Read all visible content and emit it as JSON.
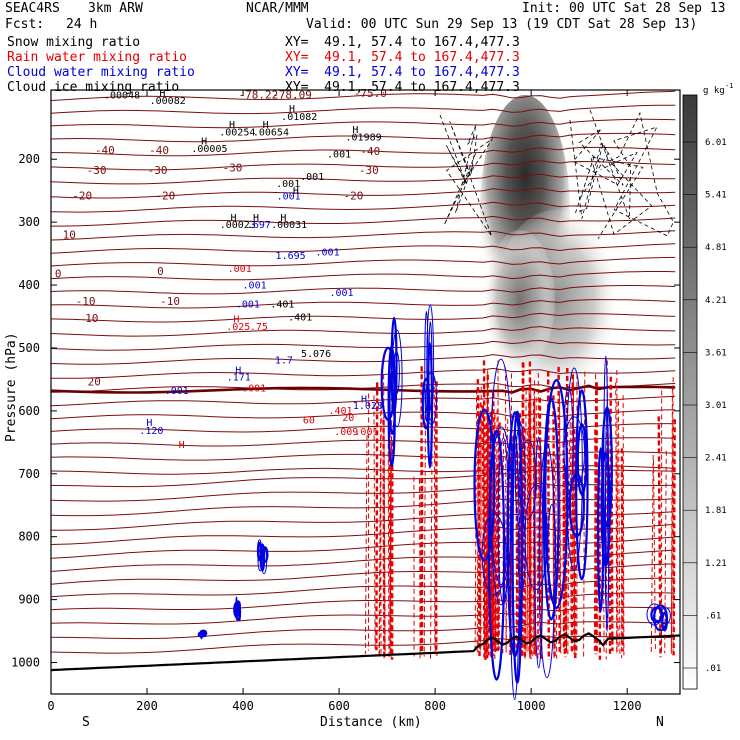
{
  "header": {
    "project": "SEAC4RS",
    "model": "3km ARW",
    "org": "NCAR/MMM",
    "init": "Init: 00 UTC Sat 28 Sep 13",
    "fcst_label": "Fcst:",
    "fcst_value": "24 h",
    "valid": "Valid: 00 UTC Sun 29 Sep 13 (19 CDT Sat 28 Sep 13)"
  },
  "fields": [
    {
      "name": "Snow mixing ratio",
      "xy": "XY=  49.1, 57.4 to 167.4,477.3",
      "color": "#000000"
    },
    {
      "name": "Rain water mixing ratio",
      "xy": "XY=  49.1, 57.4 to 167.4,477.3",
      "color": "#e60000"
    },
    {
      "name": "Cloud water mixing ratio",
      "xy": "XY=  49.1, 57.4 to 167.4,477.3",
      "color": "#0000d8"
    },
    {
      "name": "Cloud ice mixing ratio",
      "xy": "XY=  49.1, 57.4 to 167.4,477.3",
      "color": "#000000"
    }
  ],
  "chart_data": {
    "type": "heatmap",
    "xlabel": "Distance (km)",
    "ylabel": "Pressure (hPa)",
    "xlim": [
      0,
      1310
    ],
    "ylim": [
      1050,
      90
    ],
    "x_ticks": [
      0,
      200,
      400,
      600,
      800,
      1000,
      1200
    ],
    "y_ticks": [
      200,
      300,
      400,
      500,
      600,
      700,
      800,
      900,
      1000
    ],
    "x_endpoints": {
      "left": "S",
      "right": "N"
    },
    "colorbar": {
      "unit": "g kg",
      "unit_exp": "-1",
      "levels": [
        "6.01",
        "5.41",
        "4.81",
        "4.21",
        "3.61",
        "3.01",
        "2.41",
        "1.81",
        "1.21",
        ".61",
        ".01"
      ]
    },
    "temperature_labels": [
      {
        "x": 15,
        "p": 382,
        "text": "0"
      },
      {
        "x": 228,
        "p": 378,
        "text": "0"
      },
      {
        "x": 72,
        "p": 425,
        "text": "-10"
      },
      {
        "x": 248,
        "p": 425,
        "text": "-10"
      },
      {
        "x": 65,
        "p": 258,
        "text": "-20"
      },
      {
        "x": 238,
        "p": 258,
        "text": "-20"
      },
      {
        "x": 630,
        "p": 258,
        "text": "-20"
      },
      {
        "x": 95,
        "p": 217,
        "text": "-30"
      },
      {
        "x": 222,
        "p": 217,
        "text": "-30"
      },
      {
        "x": 378,
        "p": 213,
        "text": "-30"
      },
      {
        "x": 662,
        "p": 217,
        "text": "-30"
      },
      {
        "x": 112,
        "p": 185,
        "text": "-40"
      },
      {
        "x": 225,
        "p": 185,
        "text": "-40"
      },
      {
        "x": 665,
        "p": 187,
        "text": "-40"
      },
      {
        "x": 38,
        "p": 320,
        "text": "10"
      },
      {
        "x": 85,
        "p": 452,
        "text": "10"
      },
      {
        "x": 90,
        "p": 553,
        "text": "20"
      },
      {
        "x": 432,
        "p": 97,
        "text": "-78.22"
      },
      {
        "x": 502,
        "p": 97,
        "text": "-78.09"
      },
      {
        "x": 665,
        "p": 95,
        "text": "-75.0"
      }
    ],
    "field_labels": [
      {
        "x": 148,
        "p": 97,
        "text": ".00048",
        "c": "k"
      },
      {
        "x": 243,
        "p": 106,
        "text": ".00082",
        "c": "k"
      },
      {
        "x": 388,
        "p": 156,
        "text": ".00254",
        "c": "k"
      },
      {
        "x": 458,
        "p": 156,
        "text": ".00654",
        "c": "k"
      },
      {
        "x": 330,
        "p": 182,
        "text": ".00005",
        "c": "k"
      },
      {
        "x": 517,
        "p": 131,
        "text": ".01082",
        "c": "k"
      },
      {
        "x": 651,
        "p": 164,
        "text": ".01989",
        "c": "k"
      },
      {
        "x": 600,
        "p": 191,
        "text": ".001",
        "c": "k"
      },
      {
        "x": 544,
        "p": 227,
        "text": ".001",
        "c": "k"
      },
      {
        "x": 494,
        "p": 238,
        "text": ".001",
        "c": "k"
      },
      {
        "x": 389,
        "p": 303,
        "text": ".00023",
        "c": "k"
      },
      {
        "x": 496,
        "p": 303,
        "text": ".00031",
        "c": "k"
      },
      {
        "x": 433,
        "p": 303,
        "text": ".697",
        "c": "b"
      },
      {
        "x": 495,
        "p": 258,
        "text": ".001",
        "c": "b"
      },
      {
        "x": 499,
        "p": 352,
        "text": "1.695",
        "c": "b"
      },
      {
        "x": 576,
        "p": 347,
        "text": ".001",
        "c": "b"
      },
      {
        "x": 393,
        "p": 373,
        "text": ".001",
        "c": "r"
      },
      {
        "x": 424,
        "p": 399,
        "text": ".001",
        "c": "b"
      },
      {
        "x": 410,
        "p": 429,
        "text": ".001",
        "c": "b"
      },
      {
        "x": 482,
        "p": 429,
        "text": ".401",
        "c": "k"
      },
      {
        "x": 519,
        "p": 450,
        "text": ".401",
        "c": "k"
      },
      {
        "x": 605,
        "p": 411,
        "text": ".001",
        "c": "b"
      },
      {
        "x": 390,
        "p": 465,
        "text": ".025",
        "c": "r"
      },
      {
        "x": 433,
        "p": 465,
        "text": ".75",
        "c": "r"
      },
      {
        "x": 485,
        "p": 518,
        "text": "1.7",
        "c": "b"
      },
      {
        "x": 552,
        "p": 508,
        "text": "5.076",
        "c": "k"
      },
      {
        "x": 391,
        "p": 545,
        "text": ".171",
        "c": "b"
      },
      {
        "x": 423,
        "p": 563,
        "text": ".001",
        "c": "r"
      },
      {
        "x": 262,
        "p": 567,
        "text": ".001",
        "c": "b"
      },
      {
        "x": 209,
        "p": 630,
        "text": ".120",
        "c": "b"
      },
      {
        "x": 603,
        "p": 599,
        "text": ".401",
        "c": "r"
      },
      {
        "x": 619,
        "p": 610,
        "text": "20",
        "c": "r"
      },
      {
        "x": 615,
        "p": 632,
        "text": ".009",
        "c": "r"
      },
      {
        "x": 660,
        "p": 591,
        "text": "1.028",
        "c": "b"
      },
      {
        "x": 657,
        "p": 632,
        "text": ".001",
        "c": "r"
      },
      {
        "x": 537,
        "p": 614,
        "text": "60",
        "c": "r"
      }
    ],
    "highs": [
      {
        "x": 232,
        "p": 94,
        "c": "k"
      },
      {
        "x": 377,
        "p": 144,
        "c": "k"
      },
      {
        "x": 447,
        "p": 144,
        "c": "k"
      },
      {
        "x": 319,
        "p": 170,
        "c": "k"
      },
      {
        "x": 502,
        "p": 119,
        "c": "k"
      },
      {
        "x": 634,
        "p": 152,
        "c": "k"
      },
      {
        "x": 380,
        "p": 292,
        "c": "k"
      },
      {
        "x": 427,
        "p": 292,
        "c": "k"
      },
      {
        "x": 484,
        "p": 292,
        "c": "k"
      },
      {
        "x": 510,
        "p": 249,
        "c": "k"
      },
      {
        "x": 386,
        "p": 453,
        "c": "r"
      },
      {
        "x": 272,
        "p": 653,
        "c": "r"
      },
      {
        "x": 390,
        "p": 534,
        "c": "b"
      },
      {
        "x": 205,
        "p": 618,
        "c": "b"
      },
      {
        "x": 652,
        "p": 580,
        "c": "b"
      }
    ]
  }
}
